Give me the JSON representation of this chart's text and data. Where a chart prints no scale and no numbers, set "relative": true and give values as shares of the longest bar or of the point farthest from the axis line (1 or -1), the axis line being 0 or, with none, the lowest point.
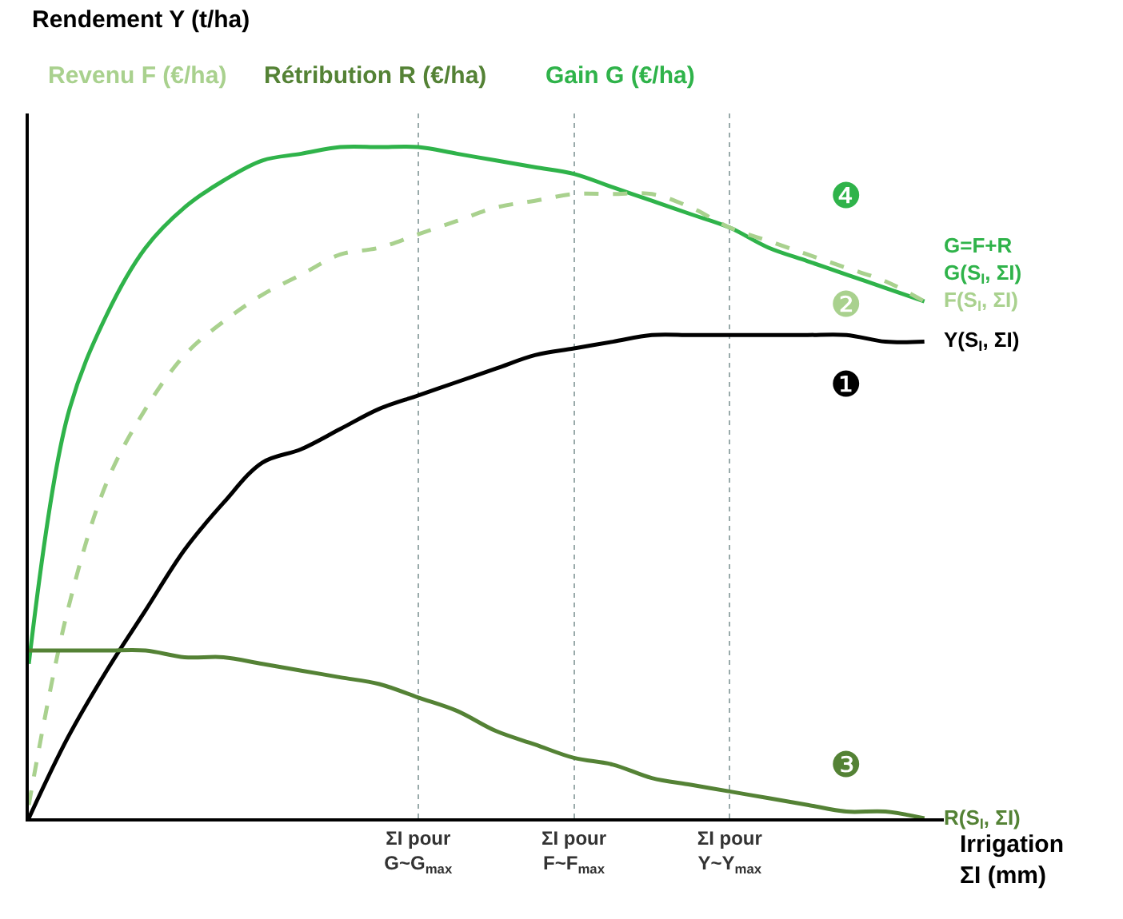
{
  "chart_data": {
    "type": "line",
    "relative": true,
    "legend": "top left",
    "grid": "x",
    "line_style": "solid",
    "marker": "none",
    "categories": [
      null,
      null,
      null,
      null,
      null,
      null,
      null,
      null,
      null,
      null,
      "ΣI pour\nG~G$_{max}$",
      null,
      null,
      null,
      "ΣI pour\nF~F$_{max}$",
      null,
      null,
      null,
      "ΣI pour\nY~Y$_{max}$",
      null,
      null,
      null,
      null,
      null
    ],
    "xlabel": "Irrigation\nΣI (mm)",
    "series": [
      {
        "name": "Gain G (€/ha)",
        "color": "#2fb34a",
        "values": [
          0.23,
          0.6,
          0.75,
          0.85,
          0.91,
          0.95,
          0.98,
          0.99,
          1.0,
          1.0,
          1.0,
          0.99,
          0.98,
          0.97,
          0.96,
          0.94,
          0.92,
          0.9,
          0.88,
          0.85,
          0.83,
          0.81,
          0.79,
          0.77
        ]
      },
      {
        "name": "Revenu F (€/ha)",
        "color": "#a9d18e",
        "line_style": "dashed",
        "values": [
          0.02,
          0.31,
          0.5,
          0.61,
          0.69,
          0.74,
          0.78,
          0.81,
          0.84,
          0.85,
          0.87,
          0.89,
          0.91,
          0.92,
          0.93,
          0.93,
          0.93,
          0.91,
          0.88,
          0.86,
          0.84,
          0.82,
          0.8,
          0.77
        ]
      },
      {
        "name": "Rendement Y (t/ha)",
        "color": "#000000",
        "values": [
          0,
          0.12,
          0.22,
          0.31,
          0.4,
          0.47,
          0.53,
          0.55,
          0.58,
          0.61,
          0.63,
          0.65,
          0.67,
          0.69,
          0.7,
          0.71,
          0.72,
          0.72,
          0.72,
          0.72,
          0.72,
          0.72,
          0.71,
          0.71
        ]
      },
      {
        "name": "Rétribution R (€/ha)",
        "color": "#548235",
        "values": [
          0.25,
          0.25,
          0.25,
          0.25,
          0.24,
          0.24,
          0.23,
          0.22,
          0.21,
          0.2,
          0.18,
          0.16,
          0.13,
          0.11,
          0.09,
          0.08,
          0.06,
          0.05,
          0.04,
          0.03,
          0.02,
          0.01,
          0.01,
          0.0
        ]
      }
    ],
    "annotations": [
      {
        "text": "G=F+R\nG(S$_{I}$, ΣI)"
      },
      {
        "text": "F(S$_{I}$, ΣI)"
      },
      {
        "text": "Y(S$_{I}$, ΣI)"
      },
      {
        "text": "R(S$_{I}$, ΣI)"
      },
      {
        "text": "❹"
      },
      {
        "text": "❷"
      },
      {
        "text": "❶"
      },
      {
        "text": "❸"
      }
    ]
  }
}
